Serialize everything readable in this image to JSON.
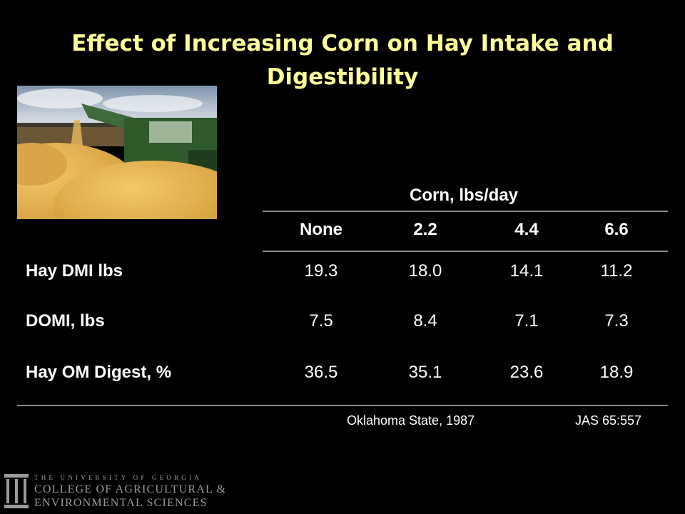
{
  "slide": {
    "title": "Effect of Increasing Corn on Hay Intake and Digestibility",
    "photo_icon": "corn-harvest-photo"
  },
  "table": {
    "group_header": "Corn, lbs/day",
    "columns": [
      "None",
      "2.2",
      "4.4",
      "6.6"
    ],
    "rows": [
      {
        "label": "Hay DMI lbs",
        "values": [
          "19.3",
          "18.0",
          "14.1",
          "11.2"
        ]
      },
      {
        "label": "DOMI, lbs",
        "values": [
          "7.5",
          "8.4",
          "7.1",
          "7.3"
        ]
      },
      {
        "label": "Hay OM Digest, %",
        "values": [
          "36.5",
          "35.1",
          "23.6",
          "18.9"
        ]
      }
    ]
  },
  "footer": {
    "source_left": "Oklahoma State, 1987",
    "source_right": "JAS 65:557"
  },
  "logo": {
    "line1": "THE UNIVERSITY OF GEORGIA",
    "line2": "COLLEGE OF AGRICULTURAL &",
    "line3": "ENVIRONMENTAL SCIENCES",
    "icon": "arch-icon"
  },
  "colors": {
    "background": "#000000",
    "title": "#ffff99",
    "text": "#ffffff",
    "rule": "#8c8c8c"
  }
}
